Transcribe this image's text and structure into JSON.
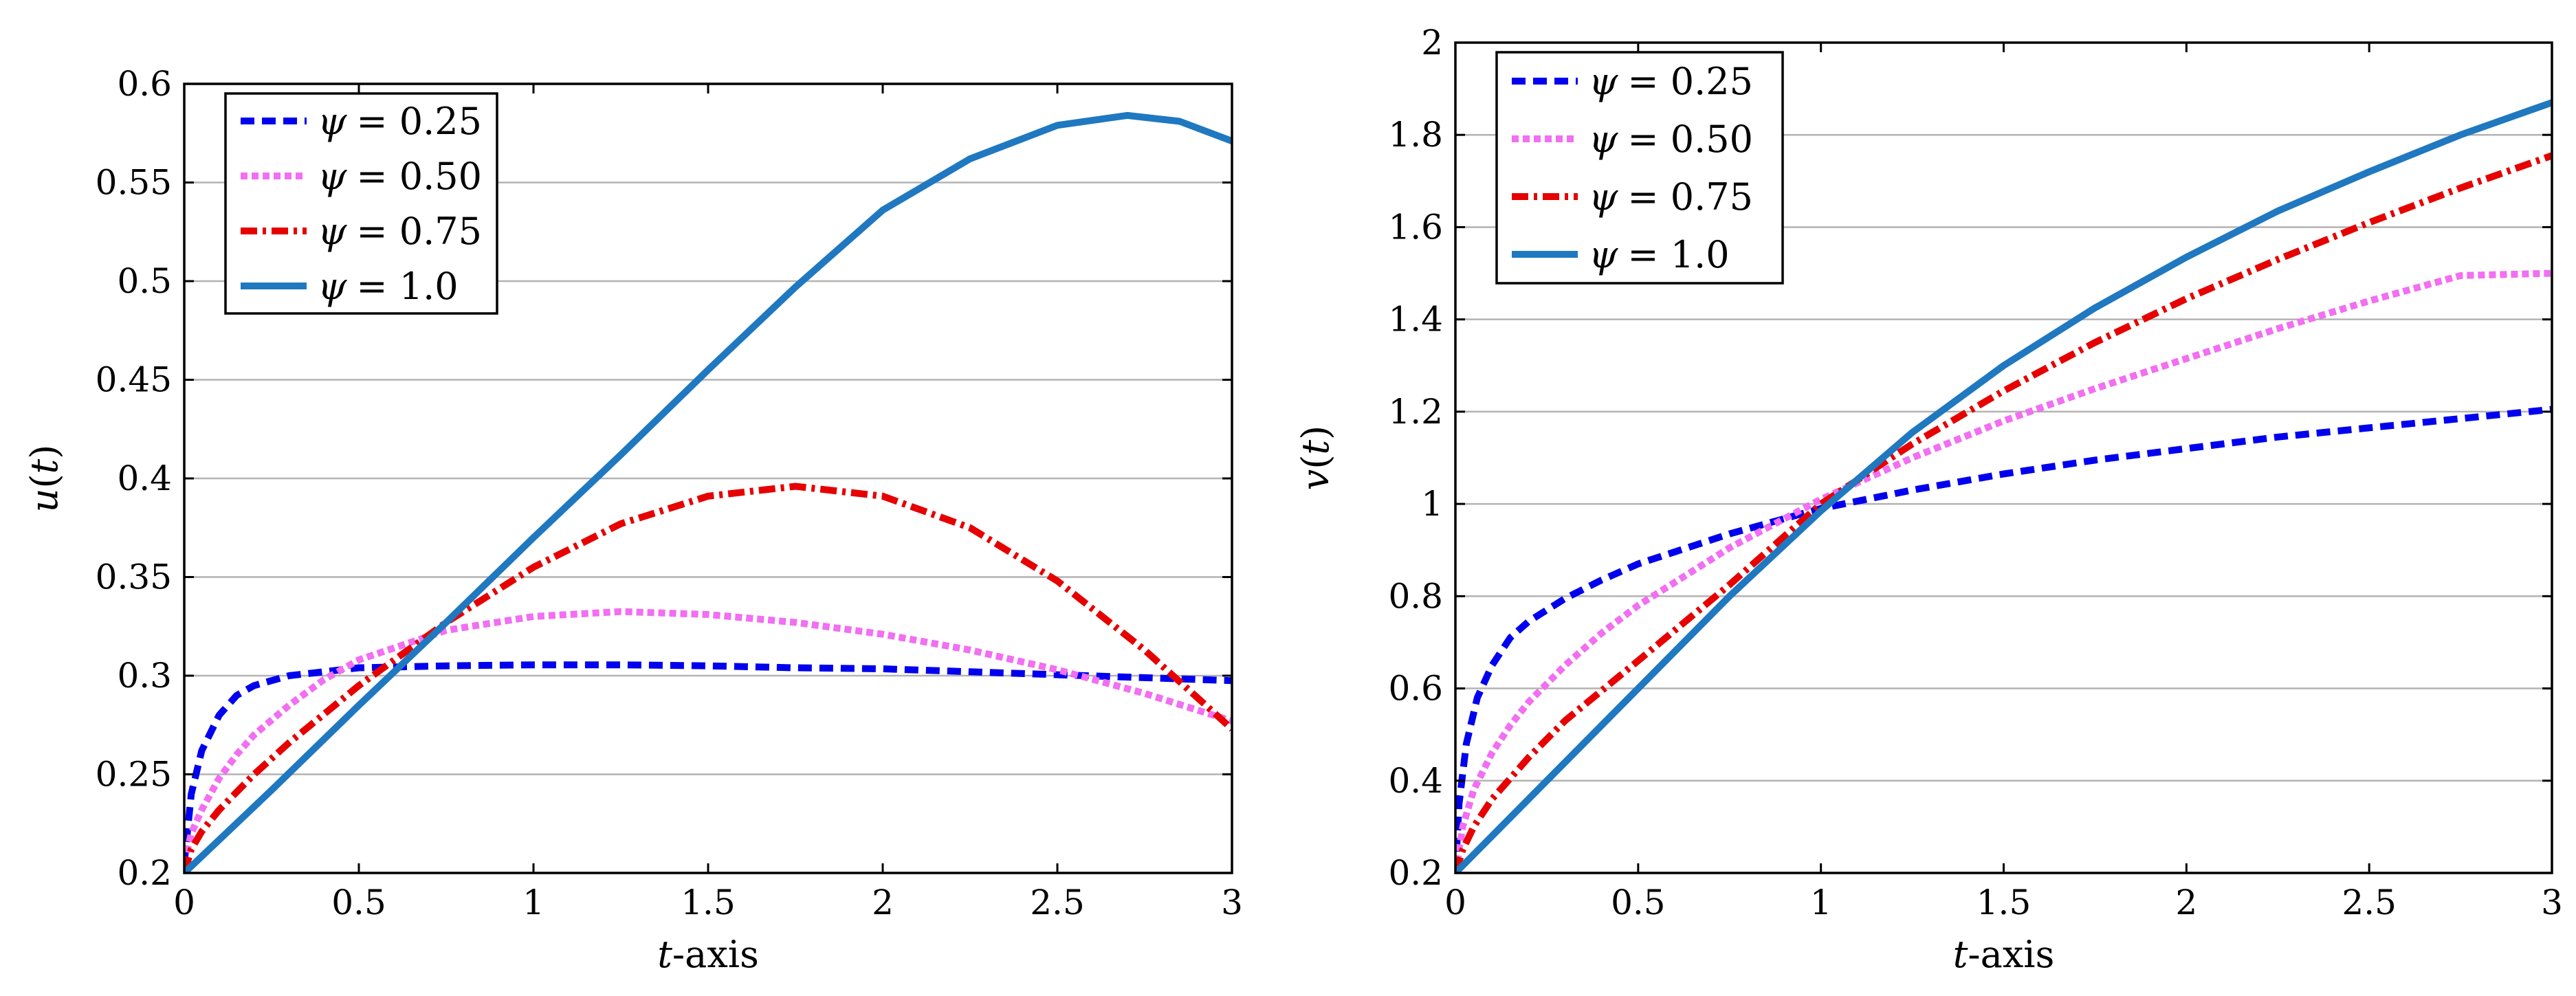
{
  "chart_data": [
    {
      "type": "line",
      "title": "",
      "xlabel": {
        "var": "t",
        "suffix": "-axis"
      },
      "ylabel": {
        "fn": "u",
        "arg": "t"
      },
      "xlim": [
        0,
        3
      ],
      "ylim": [
        0.2,
        0.6
      ],
      "x_ticks": [
        "0",
        "0.5",
        "1",
        "1.5",
        "2",
        "2.5",
        "3"
      ],
      "y_ticks": [
        "0.2",
        "0.25",
        "0.3",
        "0.35",
        "0.4",
        "0.45",
        "0.5",
        "0.55",
        "0.6"
      ],
      "grid": "horizontal",
      "legend_position": "top-left",
      "series": [
        {
          "name": "ψ = 0.25",
          "symbol": "ψ",
          "rhs": "= 0.25",
          "color": "#0000ee",
          "style": "dashed",
          "x": [
            0,
            0.02,
            0.05,
            0.1,
            0.15,
            0.2,
            0.3,
            0.4,
            0.5,
            0.75,
            1.0,
            1.25,
            1.5,
            1.75,
            2.0,
            2.25,
            2.5,
            2.75,
            3.0
          ],
          "y": [
            0.205,
            0.24,
            0.262,
            0.28,
            0.29,
            0.295,
            0.3,
            0.302,
            0.304,
            0.305,
            0.3055,
            0.3055,
            0.305,
            0.304,
            0.3035,
            0.302,
            0.3005,
            0.299,
            0.2975
          ]
        },
        {
          "name": "ψ = 0.50",
          "symbol": "ψ",
          "rhs": "= 0.50",
          "color": "#f26ef2",
          "style": "dotted",
          "x": [
            0,
            0.02,
            0.05,
            0.1,
            0.15,
            0.2,
            0.3,
            0.4,
            0.5,
            0.75,
            1.0,
            1.25,
            1.5,
            1.75,
            2.0,
            2.25,
            2.5,
            2.75,
            3.0
          ],
          "y": [
            0.205,
            0.22,
            0.232,
            0.248,
            0.26,
            0.27,
            0.285,
            0.298,
            0.308,
            0.323,
            0.33,
            0.3325,
            0.331,
            0.327,
            0.321,
            0.313,
            0.303,
            0.291,
            0.277
          ]
        },
        {
          "name": "ψ = 0.75",
          "symbol": "ψ",
          "rhs": "= 0.75",
          "color": "#e60000",
          "style": "dashdot",
          "x": [
            0,
            0.02,
            0.05,
            0.1,
            0.2,
            0.3,
            0.5,
            0.75,
            1.0,
            1.25,
            1.5,
            1.75,
            2.0,
            2.25,
            2.5,
            2.75,
            3.0
          ],
          "y": [
            0.2,
            0.212,
            0.221,
            0.232,
            0.25,
            0.266,
            0.295,
            0.327,
            0.355,
            0.377,
            0.391,
            0.396,
            0.391,
            0.375,
            0.348,
            0.313,
            0.273
          ]
        },
        {
          "name": "ψ = 1.0",
          "symbol": "ψ",
          "rhs": "= 1.0",
          "color": "#1f78c0",
          "style": "solid",
          "x": [
            0,
            0.25,
            0.5,
            0.75,
            1.0,
            1.25,
            1.5,
            1.75,
            2.0,
            2.25,
            2.5,
            2.7,
            2.85,
            3.0
          ],
          "y": [
            0.2,
            0.242,
            0.285,
            0.327,
            0.37,
            0.412,
            0.455,
            0.497,
            0.536,
            0.562,
            0.579,
            0.584,
            0.581,
            0.571
          ]
        }
      ]
    },
    {
      "type": "line",
      "title": "",
      "xlabel": {
        "var": "t",
        "suffix": "-axis"
      },
      "ylabel": {
        "fn": "v",
        "arg": "t"
      },
      "xlim": [
        0,
        3
      ],
      "ylim": [
        0.2,
        2
      ],
      "x_ticks": [
        "0",
        "0.5",
        "1",
        "1.5",
        "2",
        "2.5",
        "3"
      ],
      "y_ticks": [
        "0.2",
        "0.4",
        "0.6",
        "0.8",
        "1",
        "1.2",
        "1.4",
        "1.6",
        "1.8",
        "2"
      ],
      "grid": "horizontal",
      "legend_position": "top-left",
      "series": [
        {
          "name": "ψ = 0.25",
          "symbol": "ψ",
          "rhs": "= 0.25",
          "color": "#0000ee",
          "style": "dashed",
          "x": [
            0,
            0.01,
            0.03,
            0.06,
            0.1,
            0.15,
            0.2,
            0.3,
            0.4,
            0.5,
            0.75,
            1.0,
            1.25,
            1.5,
            1.75,
            2.0,
            2.25,
            2.5,
            2.75,
            3.0
          ],
          "y": [
            0.2,
            0.35,
            0.48,
            0.58,
            0.65,
            0.71,
            0.745,
            0.795,
            0.835,
            0.87,
            0.935,
            0.99,
            1.03,
            1.065,
            1.095,
            1.12,
            1.145,
            1.165,
            1.185,
            1.205
          ]
        },
        {
          "name": "ψ = 0.50",
          "symbol": "ψ",
          "rhs": "= 0.50",
          "color": "#f26ef2",
          "style": "dotted",
          "x": [
            0,
            0.02,
            0.05,
            0.1,
            0.15,
            0.2,
            0.3,
            0.4,
            0.5,
            0.75,
            1.0,
            1.25,
            1.5,
            1.75,
            2.0,
            2.25,
            2.5,
            2.75,
            3.0
          ],
          "y": [
            0.2,
            0.3,
            0.38,
            0.46,
            0.52,
            0.57,
            0.65,
            0.72,
            0.78,
            0.905,
            1.01,
            1.1,
            1.18,
            1.25,
            1.315,
            1.38,
            1.44,
            1.495,
            1.5
          ]
        },
        {
          "name": "ψ = 0.75",
          "symbol": "ψ",
          "rhs": "= 0.75",
          "color": "#e60000",
          "style": "dashdot",
          "x": [
            0,
            0.02,
            0.05,
            0.1,
            0.2,
            0.3,
            0.5,
            0.75,
            1.0,
            1.25,
            1.5,
            1.75,
            2.0,
            2.25,
            2.5,
            2.75,
            3.0
          ],
          "y": [
            0.2,
            0.25,
            0.3,
            0.36,
            0.45,
            0.53,
            0.66,
            0.825,
            1.0,
            1.13,
            1.245,
            1.35,
            1.445,
            1.53,
            1.61,
            1.685,
            1.755
          ]
        },
        {
          "name": "ψ = 1.0",
          "symbol": "ψ",
          "rhs": "= 1.0",
          "color": "#1f78c0",
          "style": "solid",
          "x": [
            0,
            0.25,
            0.5,
            0.75,
            1.0,
            1.25,
            1.5,
            1.75,
            2.0,
            2.25,
            2.5,
            2.75,
            3.0
          ],
          "y": [
            0.2,
            0.4,
            0.6,
            0.8,
            0.985,
            1.155,
            1.3,
            1.425,
            1.535,
            1.635,
            1.72,
            1.8,
            1.87
          ]
        }
      ]
    }
  ]
}
